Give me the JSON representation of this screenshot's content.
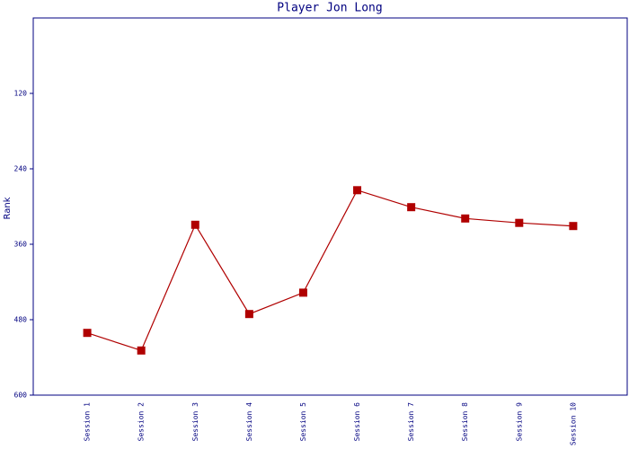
{
  "chart_data": {
    "type": "line",
    "title": "Player Jon Long",
    "y_label": "Rank",
    "categories": [
      "Session 1",
      "Session 2",
      "Session 3",
      "Session 4",
      "Session 5",
      "Session 6",
      "Session 7",
      "Session 8",
      "Session 9",
      "Session 10"
    ],
    "series": [
      {
        "name": "Rank",
        "color": "#b00000",
        "values": [
          501,
          529,
          329,
          471,
          437,
          274,
          301,
          319,
          326,
          331
        ]
      }
    ],
    "ylim": [
      0,
      600
    ],
    "y_inverted": true,
    "yticks": [
      120,
      240,
      360,
      480,
      600
    ],
    "grid": false
  }
}
